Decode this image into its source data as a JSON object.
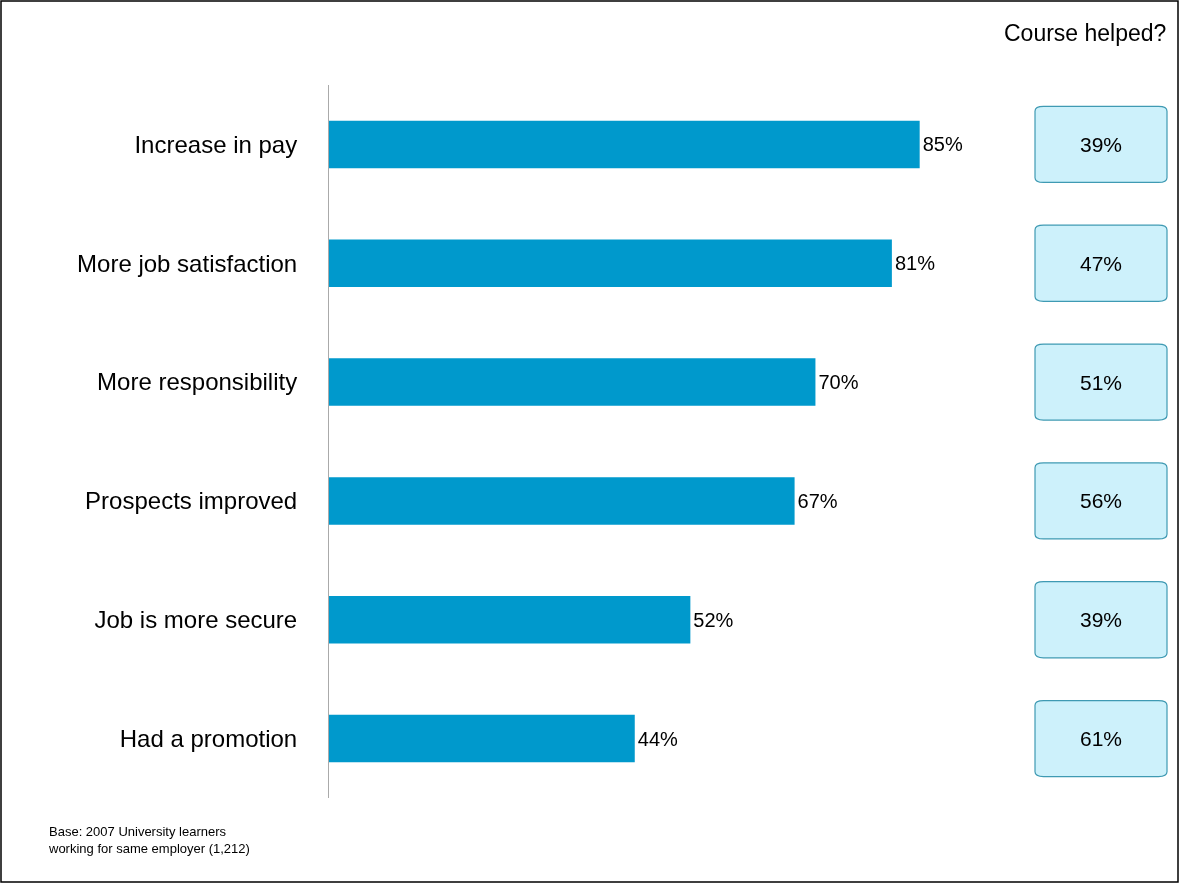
{
  "chart_data": {
    "type": "bar",
    "orientation": "horizontal",
    "categories": [
      "Increase in pay",
      "More job satisfaction",
      "More responsibility",
      "Prospects improved",
      "Job is more secure",
      "Had a promotion"
    ],
    "values": [
      85,
      81,
      70,
      67,
      52,
      44
    ],
    "value_labels": [
      "85%",
      "81%",
      "70%",
      "67%",
      "52%",
      "44%"
    ],
    "color": "#0099cc",
    "tick_labels": "y",
    "annotations": [
      "Course helped?",
      "39%",
      "47%",
      "51%",
      "56%",
      "39%",
      "61%",
      "Base: 2007 University learners\nworking for same employer (1,212)"
    ]
  }
}
